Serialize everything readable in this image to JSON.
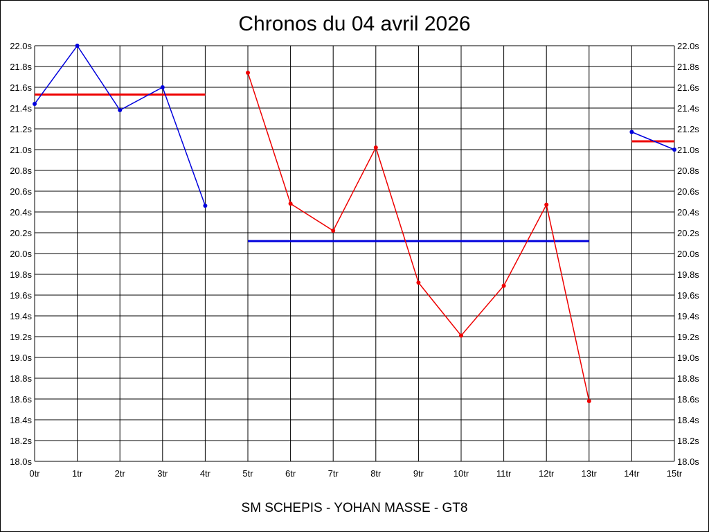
{
  "chart_data": {
    "type": "line",
    "title": "Chronos du 04 avril 2026",
    "subtitle": "SM SCHEPIS - YOHAN MASSE - GT8",
    "x_tick_labels": [
      "0tr",
      "1tr",
      "2tr",
      "3tr",
      "4tr",
      "5tr",
      "6tr",
      "7tr",
      "8tr",
      "9tr",
      "10tr",
      "11tr",
      "12tr",
      "13tr",
      "14tr",
      "15tr"
    ],
    "y_tick_labels": [
      "18.0s",
      "18.2s",
      "18.4s",
      "18.6s",
      "18.8s",
      "19.0s",
      "19.2s",
      "19.4s",
      "19.6s",
      "19.8s",
      "20.0s",
      "20.2s",
      "20.4s",
      "20.6s",
      "20.8s",
      "21.0s",
      "21.2s",
      "21.4s",
      "21.6s",
      "21.8s",
      "22.0s"
    ],
    "xlim": [
      0,
      15
    ],
    "ylim": [
      18.0,
      22.0
    ],
    "grid": true,
    "colors": {
      "blue": "#0000dd",
      "red": "#ee0000",
      "grid": "#000000"
    },
    "series": [
      {
        "color": "#0000dd",
        "x": [
          0,
          1,
          2,
          3,
          4
        ],
        "y": [
          21.44,
          22.0,
          21.38,
          21.6,
          20.46
        ]
      },
      {
        "color": "#ee0000",
        "x": [
          5,
          6,
          7,
          8,
          9,
          10,
          11,
          12,
          13
        ],
        "y": [
          21.74,
          20.48,
          20.22,
          21.02,
          19.72,
          19.21,
          19.69,
          20.47,
          18.58
        ]
      },
      {
        "color": "#0000dd",
        "x": [
          14,
          15
        ],
        "y": [
          21.17,
          21.0
        ]
      }
    ],
    "averages": [
      {
        "color": "#ee0000",
        "x_start": 0,
        "x_end": 4,
        "y": 21.53
      },
      {
        "color": "#0000dd",
        "x_start": 5,
        "x_end": 13,
        "y": 20.12
      },
      {
        "color": "#ee0000",
        "x_start": 14,
        "x_end": 15,
        "y": 21.08
      }
    ]
  }
}
